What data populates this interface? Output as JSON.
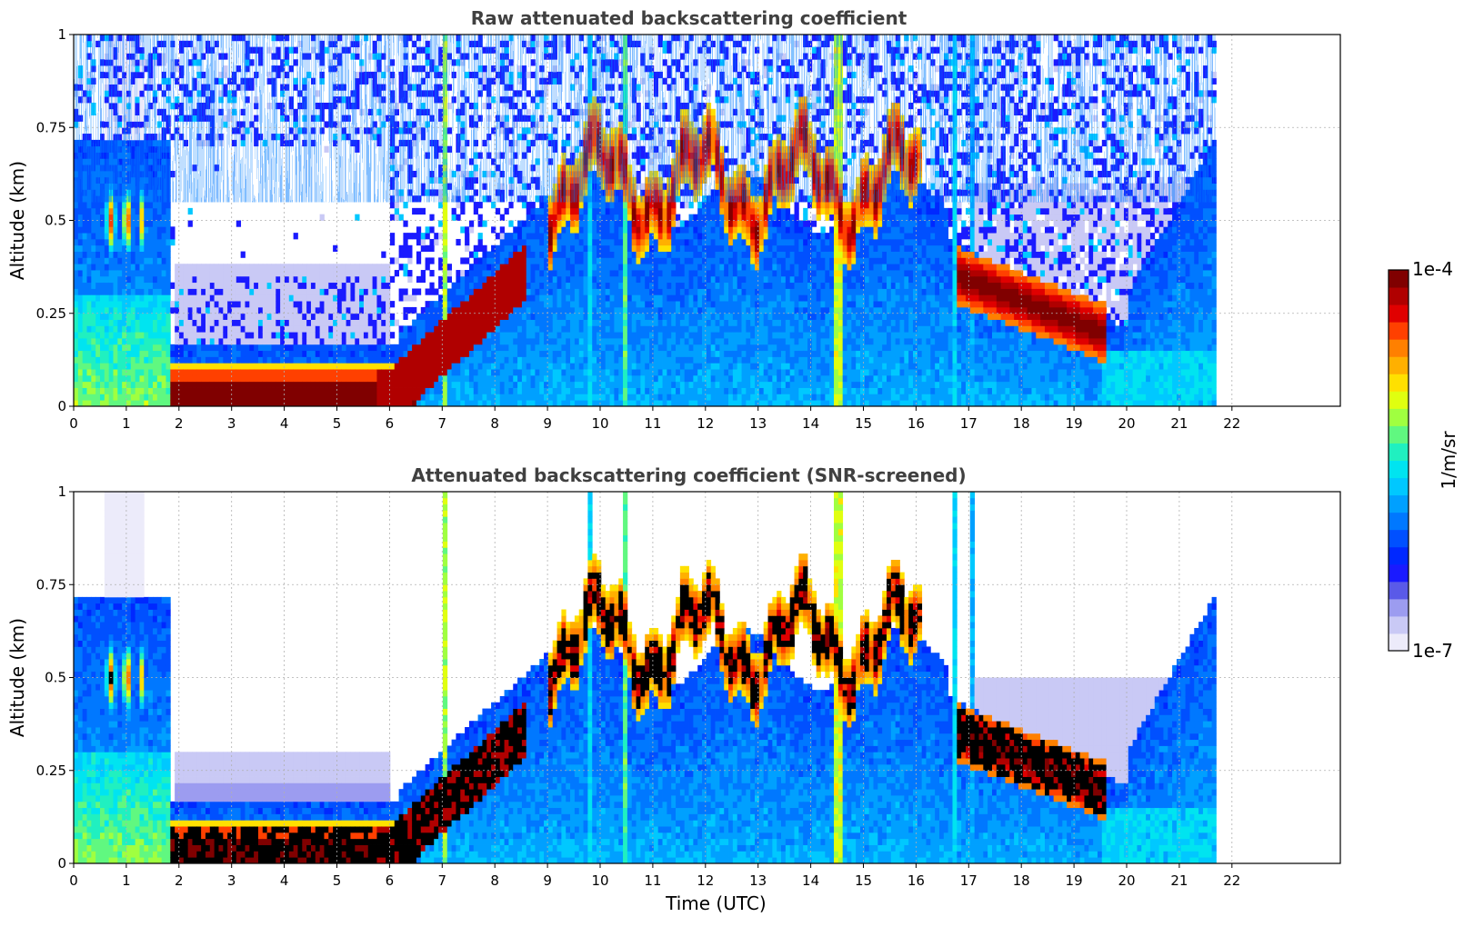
{
  "chart_data": [
    {
      "type": "heatmap",
      "title": "Raw attenuated backscattering coefficient",
      "xlabel": "",
      "ylabel": "Altitude (km)",
      "xlim": [
        0,
        24
      ],
      "ylim": [
        0,
        1
      ],
      "x_ticks": [
        "0",
        "1",
        "2",
        "3",
        "4",
        "5",
        "6",
        "7",
        "8",
        "9",
        "10",
        "11",
        "12",
        "13",
        "14",
        "15",
        "16",
        "17",
        "18",
        "19",
        "20",
        "21",
        "22"
      ],
      "y_ticks": [
        "0",
        "0.25",
        "0.5",
        "0.75",
        "1"
      ],
      "grid": true,
      "data_end_time": 21.7,
      "colormap": "jet",
      "color_scale": "log",
      "features": [
        {
          "name": "surface_layer",
          "time": [
            1.8,
            6.5
          ],
          "altitude": [
            0,
            0.12
          ],
          "level": "1e-4"
        },
        {
          "name": "rising_layer",
          "time": [
            6.0,
            8.5
          ],
          "altitude": [
            0.1,
            0.45
          ],
          "level": "1e-4"
        },
        {
          "name": "morning_layer",
          "time": [
            0.6,
            1.2
          ],
          "altitude": [
            0.35,
            0.6
          ],
          "level": "5e-5"
        },
        {
          "name": "cloud_band_midday",
          "time": [
            9.0,
            16.0
          ],
          "altitude": [
            0.45,
            0.85
          ],
          "level": "1e-4"
        },
        {
          "name": "evening_layer",
          "time": [
            16.8,
            19.6
          ],
          "altitude": [
            0.15,
            0.45
          ],
          "level": "1e-4"
        },
        {
          "name": "rain_column_1",
          "time": [
            7.0,
            7.2
          ],
          "altitude": [
            0,
            1
          ],
          "level": "1e-5"
        },
        {
          "name": "rain_column_2",
          "time": [
            14.4,
            14.7
          ],
          "altitude": [
            0,
            1
          ],
          "level": "1e-5"
        }
      ]
    },
    {
      "type": "heatmap",
      "title": "Attenuated backscattering coefficient (SNR-screened)",
      "xlabel": "Time (UTC)",
      "ylabel": "Altitude (km)",
      "xlim": [
        0,
        24
      ],
      "ylim": [
        0,
        1
      ],
      "x_ticks": [
        "0",
        "1",
        "2",
        "3",
        "4",
        "5",
        "6",
        "7",
        "8",
        "9",
        "10",
        "11",
        "12",
        "13",
        "14",
        "15",
        "16",
        "17",
        "18",
        "19",
        "20",
        "21",
        "22"
      ],
      "y_ticks": [
        "0",
        "0.25",
        "0.5",
        "0.75",
        "1"
      ],
      "grid": true,
      "data_end_time": 21.7,
      "colormap": "jet",
      "color_scale": "log",
      "screened": true
    }
  ],
  "colorbar": {
    "label": "1/m/sr",
    "max_label": "1e-4",
    "min_label": "1e-7",
    "colors": [
      "#ecebfa",
      "#c9c9f5",
      "#9c9cf0",
      "#5a5ae8",
      "#1a1aff",
      "#0028ff",
      "#0050ff",
      "#0078ff",
      "#00a0ff",
      "#00c8ff",
      "#00e4f0",
      "#20f0c0",
      "#60f880",
      "#a0ff40",
      "#e0ff10",
      "#ffe000",
      "#ffb000",
      "#ff8000",
      "#ff4000",
      "#e00000",
      "#b00000",
      "#800000"
    ]
  }
}
